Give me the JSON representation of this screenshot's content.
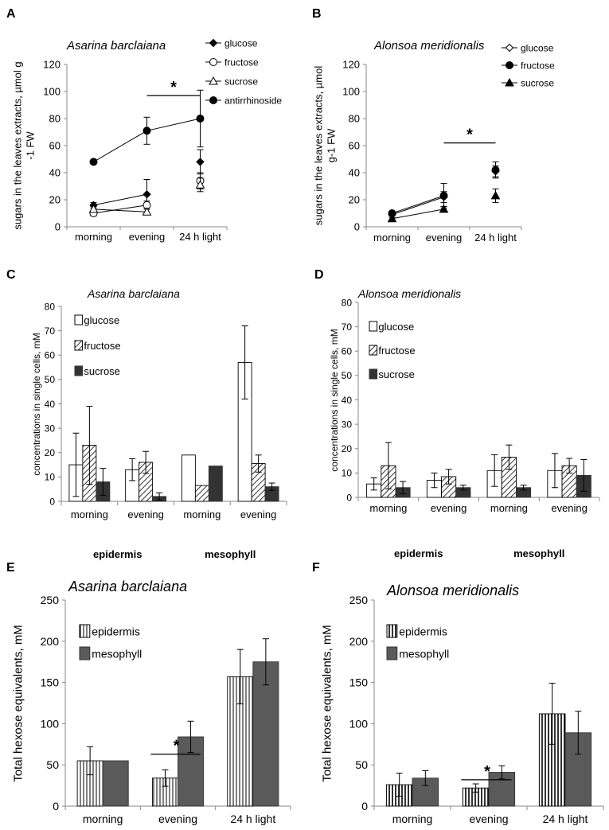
{
  "chart_data": [
    {
      "panel": "A",
      "type": "line",
      "title": "Asarina barclaiana",
      "ylabel_lines": [
        "sugars in the leaves extracts, µmol g",
        "-1 FW"
      ],
      "ylim": [
        0,
        120
      ],
      "yticks": [
        0,
        20,
        40,
        60,
        80,
        100,
        120
      ],
      "categories": [
        "morning",
        "evening",
        "24 h light"
      ],
      "series": [
        {
          "name": "glucose",
          "marker": "diamond",
          "values": [
            16,
            24,
            48
          ],
          "errors": [
            2,
            11,
            9
          ],
          "connect": [
            true,
            false
          ]
        },
        {
          "name": "fructose",
          "marker": "circle-open",
          "values": [
            10,
            16,
            34
          ],
          "errors": [
            2,
            3,
            6
          ],
          "connect": [
            true,
            false
          ]
        },
        {
          "name": "sucrose",
          "marker": "triangle-open",
          "values": [
            13,
            11,
            31
          ],
          "errors": [
            2,
            2,
            5
          ],
          "connect": [
            true,
            false
          ]
        },
        {
          "name": "antirrhinoside",
          "marker": "circle",
          "values": [
            48,
            71,
            80
          ],
          "errors": [
            1,
            10,
            21
          ],
          "connect": [
            true,
            true
          ]
        }
      ],
      "significance": {
        "label": "*",
        "from": 1,
        "to": 2,
        "level": 97
      }
    },
    {
      "panel": "B",
      "type": "line",
      "title": "Alonsoa meridionalis",
      "ylabel_lines": [
        "sugars in the leaves extracts, µmol",
        "g-1 FW"
      ],
      "ylim": [
        0,
        120
      ],
      "yticks": [
        0,
        20,
        40,
        60,
        80,
        100,
        120
      ],
      "categories": [
        "morning",
        "evening",
        "24 h light"
      ],
      "series": [
        {
          "name": "glucose",
          "marker": "diamond-open",
          "values": [
            9,
            22,
            41
          ],
          "errors": [
            1,
            4,
            4
          ],
          "connect": [
            true,
            false
          ]
        },
        {
          "name": "fructose",
          "marker": "circle",
          "values": [
            10,
            23,
            42
          ],
          "errors": [
            1,
            9,
            6
          ],
          "connect": [
            true,
            false
          ]
        },
        {
          "name": "sucrose",
          "marker": "triangle",
          "values": [
            6,
            13,
            23
          ],
          "errors": [
            1,
            2,
            5
          ],
          "connect": [
            true,
            false
          ]
        }
      ],
      "significance": {
        "label": "*",
        "from": 1,
        "to": 2,
        "level": 62
      }
    },
    {
      "panel": "C",
      "type": "bar",
      "title": "Asarina barclaiana",
      "ylabel_lines": [
        "concentrations  in  single cells, mM"
      ],
      "ylim": [
        0,
        80
      ],
      "yticks": [
        0,
        10,
        20,
        30,
        40,
        50,
        60,
        70,
        80
      ],
      "categories": [
        "morning",
        "evening",
        "morning",
        "evening"
      ],
      "groups": [
        "epidermis",
        "mesophyll"
      ],
      "series": [
        {
          "name": "glucose",
          "fill": "white",
          "values": [
            15,
            13,
            19,
            57
          ],
          "errors": [
            13,
            4.5,
            0,
            15
          ]
        },
        {
          "name": "fructose",
          "fill": "hatch",
          "values": [
            23,
            16,
            6.5,
            15.5
          ],
          "errors": [
            16,
            4.5,
            0,
            3.5
          ]
        },
        {
          "name": "sucrose",
          "fill": "dark",
          "values": [
            8,
            2,
            14.5,
            6
          ],
          "errors": [
            5.5,
            1.5,
            0,
            1.5
          ]
        }
      ]
    },
    {
      "panel": "D",
      "type": "bar",
      "title": "Alonsoa meridionalis",
      "ylabel_lines": [
        "concentrations  in  single cells, mM"
      ],
      "ylim": [
        0,
        80
      ],
      "yticks": [
        0,
        10,
        20,
        30,
        40,
        50,
        60,
        70,
        80
      ],
      "categories": [
        "morning",
        "evening",
        "morning",
        "evening"
      ],
      "groups": [
        "epidermis",
        "mesophyll"
      ],
      "series": [
        {
          "name": "glucose",
          "fill": "white",
          "values": [
            5.5,
            7,
            11,
            11
          ],
          "errors": [
            2.5,
            3,
            6.5,
            7
          ]
        },
        {
          "name": "fructose",
          "fill": "hatch",
          "values": [
            13,
            8.5,
            16.5,
            13
          ],
          "errors": [
            9.5,
            3,
            5,
            3
          ]
        },
        {
          "name": "sucrose",
          "fill": "dark",
          "values": [
            4,
            4,
            4,
            9
          ],
          "errors": [
            2.5,
            1,
            1,
            6.5
          ]
        }
      ]
    },
    {
      "panel": "E",
      "type": "bar",
      "title": "Asarina barclaiana",
      "ylabel_lines": [
        "Total hexose equivalents,  mM"
      ],
      "ylim": [
        0,
        250
      ],
      "yticks": [
        0,
        50,
        100,
        150,
        200,
        250
      ],
      "categories": [
        "morning",
        "evening",
        "24 h light"
      ],
      "series": [
        {
          "name": "epidermis",
          "fill": "vstripe",
          "values": [
            55,
            34,
            157
          ],
          "errors": [
            17,
            10,
            33
          ]
        },
        {
          "name": "mesophyll",
          "fill": "gray",
          "values": [
            55,
            84,
            175
          ],
          "errors": [
            0,
            19,
            28
          ]
        }
      ],
      "significance": {
        "label": "*",
        "category": 1,
        "level": 63
      }
    },
    {
      "panel": "F",
      "type": "bar",
      "title": "Alonsoa meridionalis",
      "ylabel_lines": [
        "Total hexose equivalents,  mM"
      ],
      "ylim": [
        0,
        250
      ],
      "yticks": [
        0,
        50,
        100,
        150,
        200,
        250
      ],
      "categories": [
        "morning",
        "evening",
        "24 h light"
      ],
      "series": [
        {
          "name": "epidermis",
          "fill": "vstripe-bold",
          "values": [
            26,
            22,
            112
          ],
          "errors": [
            14,
            5,
            37
          ]
        },
        {
          "name": "mesophyll",
          "fill": "gray",
          "values": [
            34,
            41,
            89
          ],
          "errors": [
            9,
            8,
            26
          ]
        }
      ],
      "significance": {
        "label": "*",
        "category": 1,
        "level": 32
      }
    }
  ]
}
